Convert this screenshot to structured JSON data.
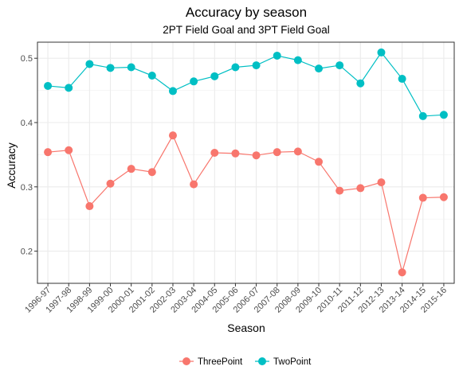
{
  "chart_data": {
    "type": "line",
    "title": "Accuracy by season",
    "subtitle": "2PT Field Goal and 3PT Field Goal",
    "xlabel": "Season",
    "ylabel": "Accuracy",
    "ylim": [
      0.15,
      0.525
    ],
    "yticks": [
      0.2,
      0.3,
      0.4,
      0.5
    ],
    "ytick_labels": [
      "0.2",
      "0.3",
      "0.4",
      "0.5"
    ],
    "grid": true,
    "legend_position": "bottom",
    "categories": [
      "1996-97",
      "1997-98",
      "1998-99",
      "1999-00",
      "2000-01",
      "2001-02",
      "2002-03",
      "2003-04",
      "2004-05",
      "2005-06",
      "2006-07",
      "2007-08",
      "2008-09",
      "2009-10",
      "2010-11",
      "2011-12",
      "2012-13",
      "2013-14",
      "2014-15",
      "2015-16"
    ],
    "series": [
      {
        "name": "ThreePoint",
        "color": "#F8766D",
        "values": [
          0.354,
          0.357,
          0.27,
          0.305,
          0.328,
          0.323,
          0.38,
          0.304,
          0.353,
          0.352,
          0.349,
          0.354,
          0.355,
          0.339,
          0.294,
          0.298,
          0.307,
          0.167,
          0.283,
          0.284
        ]
      },
      {
        "name": "TwoPoint",
        "color": "#00BFC4",
        "values": [
          0.457,
          0.454,
          0.491,
          0.485,
          0.486,
          0.473,
          0.449,
          0.464,
          0.472,
          0.486,
          0.489,
          0.504,
          0.497,
          0.484,
          0.489,
          0.461,
          0.509,
          0.468,
          0.41,
          0.412
        ]
      }
    ]
  }
}
